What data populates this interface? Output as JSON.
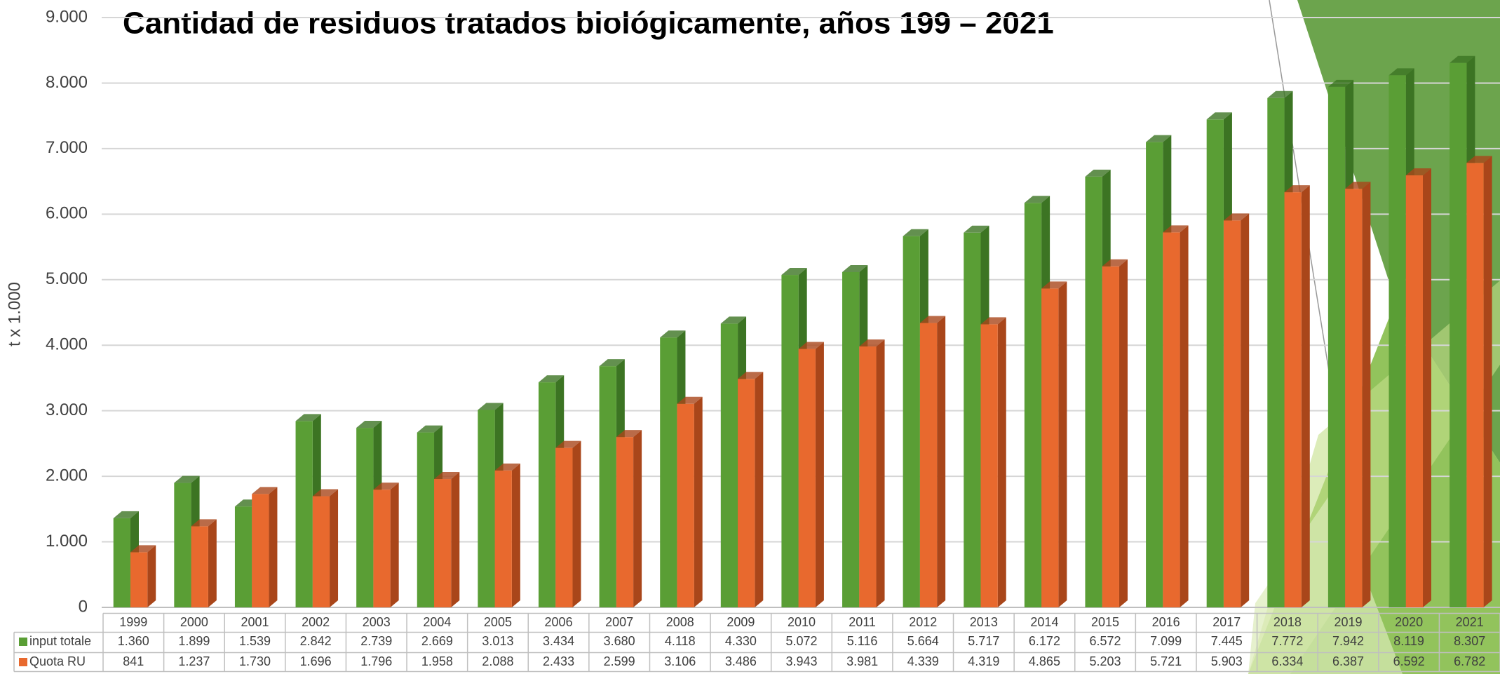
{
  "chart_data": {
    "type": "bar",
    "title": "Cantidad de residuos tratados biológicamente, años 199 – 2021",
    "y_label": "t x 1.000",
    "categories": [
      "1999",
      "2000",
      "2001",
      "2002",
      "2003",
      "2004",
      "2005",
      "2006",
      "2007",
      "2008",
      "2009",
      "2010",
      "2011",
      "2012",
      "2013",
      "2014",
      "2015",
      "2016",
      "2017",
      "2018",
      "2019",
      "2020",
      "2021"
    ],
    "series": [
      {
        "name": "input totale",
        "color": "#5a9e35",
        "side_color": "#3c7423",
        "values": [
          1360,
          1899,
          1539,
          2842,
          2739,
          2669,
          3013,
          3434,
          3680,
          4118,
          4330,
          5072,
          5116,
          5664,
          5717,
          6172,
          6572,
          7099,
          7445,
          7772,
          7942,
          8119,
          8307
        ],
        "value_labels": [
          "1.360",
          "1.899",
          "1.539",
          "2.842",
          "2.739",
          "2.669",
          "3.013",
          "3.434",
          "3.680",
          "4.118",
          "4.330",
          "5.072",
          "5.116",
          "5.664",
          "5.717",
          "6.172",
          "6.572",
          "7.099",
          "7.445",
          "7.772",
          "7.942",
          "8.119",
          "8.307"
        ]
      },
      {
        "name": "Quota RU",
        "color": "#e8692e",
        "side_color": "#a9461a",
        "values": [
          841,
          1237,
          1730,
          1696,
          1796,
          1958,
          2088,
          2433,
          2599,
          3106,
          3486,
          3943,
          3981,
          4339,
          4319,
          4865,
          5203,
          5721,
          5903,
          6334,
          6387,
          6592,
          6782
        ],
        "value_labels": [
          "841",
          "1.237",
          "1.730",
          "1.696",
          "1.796",
          "1.958",
          "2.088",
          "2.433",
          "2.599",
          "3.106",
          "3.486",
          "3.943",
          "3.981",
          "4.339",
          "4.319",
          "4.865",
          "5.203",
          "5.721",
          "5.903",
          "6.334",
          "6.387",
          "6.592",
          "6.782"
        ]
      }
    ],
    "ylim": [
      0,
      9000
    ],
    "yticks": [
      0,
      {
        "value": 1000,
        "label": "1.000"
      },
      {
        "value": 2000,
        "label": "2.000"
      },
      {
        "value": 3000,
        "label": "3.000"
      },
      {
        "value": 4000,
        "label": "4.000"
      },
      {
        "value": 5000,
        "label": "5.000"
      },
      {
        "value": 6000,
        "label": "6.000"
      },
      {
        "value": 7000,
        "label": "7.000"
      },
      {
        "value": 8000,
        "label": "8.000"
      },
      {
        "value": 9000,
        "label": "9.000"
      }
    ],
    "grid": true
  }
}
